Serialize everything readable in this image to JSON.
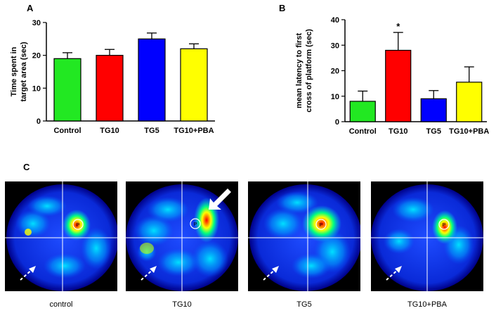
{
  "panels": {
    "a": "A",
    "b": "B",
    "c": "C"
  },
  "chart_data": [
    {
      "type": "bar",
      "categories": [
        "Control",
        "TG10",
        "TG5",
        "TG10+PBA"
      ],
      "values": [
        19,
        20,
        25,
        22
      ],
      "errors": [
        1.8,
        1.8,
        1.8,
        1.5
      ],
      "colors": [
        "#22e822",
        "#ff0000",
        "#0000ff",
        "#ffff00"
      ],
      "ylabel": "Time spent in target area (sec)",
      "ylim": [
        0,
        30
      ],
      "yticks": [
        0,
        10,
        20,
        30
      ],
      "grid": false
    },
    {
      "type": "bar",
      "categories": [
        "Control",
        "TG10",
        "TG5",
        "TG10+PBA"
      ],
      "values": [
        8,
        28,
        9,
        15.5
      ],
      "errors": [
        4,
        7,
        3.2,
        6
      ],
      "colors": [
        "#22e822",
        "#ff0000",
        "#0000ff",
        "#ffff00"
      ],
      "ylabel": "mean latency to first cross of platform (sec)",
      "ylim": [
        0,
        40
      ],
      "yticks": [
        0,
        10,
        20,
        30,
        40
      ],
      "annotations": [
        {
          "category": "TG10",
          "text": "*"
        }
      ],
      "grid": false
    }
  ],
  "heatmaps": [
    {
      "caption": "control",
      "marker": "P"
    },
    {
      "caption": "TG10",
      "marker": "P"
    },
    {
      "caption": "TG5",
      "marker": "P"
    },
    {
      "caption": "TG10+PBA",
      "marker": "P"
    }
  ]
}
